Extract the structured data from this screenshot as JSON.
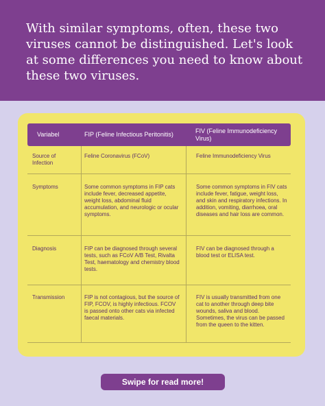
{
  "banner": {
    "text": "With similar symptoms, often, these two viruses cannot be distinguished. Let's look at some differences you need to know about these two viruses."
  },
  "table": {
    "headers": [
      "Variabel",
      "FIP (Feline Infectious Peritonitis)",
      "FIV (Feline Immunodeficiency Virus)"
    ],
    "rows": [
      {
        "label": "Source of Infection",
        "fip": "Feline Coronavirus (FCoV)",
        "fiv": "Feline Immunodeficiency Virus"
      },
      {
        "label": "Symptoms",
        "fip": "Some common symptoms in FIP cats include fever, decreased appetite, weight loss, abdominal fluid accumulation, and neurologic or ocular symptoms.",
        "fiv": "Some common symptoms in FIV cats include fever, fatigue, weight loss, and skin and respiratory infections. In addition, vomiting, diarrhoea, oral diseases and hair loss are common."
      },
      {
        "label": "Diagnosis",
        "fip": "FIP can be diagnosed through several tests, such as FCoV A/B Test, Rivalta Test, haematology and chemistry blood tests.",
        "fiv": "FIV can be diagnosed through a blood test or ELISA test."
      },
      {
        "label": "Transmission",
        "fip": "FIP is not contagious, but the source of FIP, FCOV, is highly infectious. FCOV is passed onto other cats via infected faecal materials.",
        "fiv": "FIV is usually transmitted from one cat to another through deep bite wounds, saliva and blood. Sometimes, the virus can be passed from the queen to the kitten."
      }
    ]
  },
  "cta": {
    "label": "Swipe for read more!"
  },
  "colors": {
    "purple": "#7e3f8f",
    "yellow": "#f1e66a",
    "lavender": "#d6d1ec",
    "text": "#5c2f6a"
  }
}
